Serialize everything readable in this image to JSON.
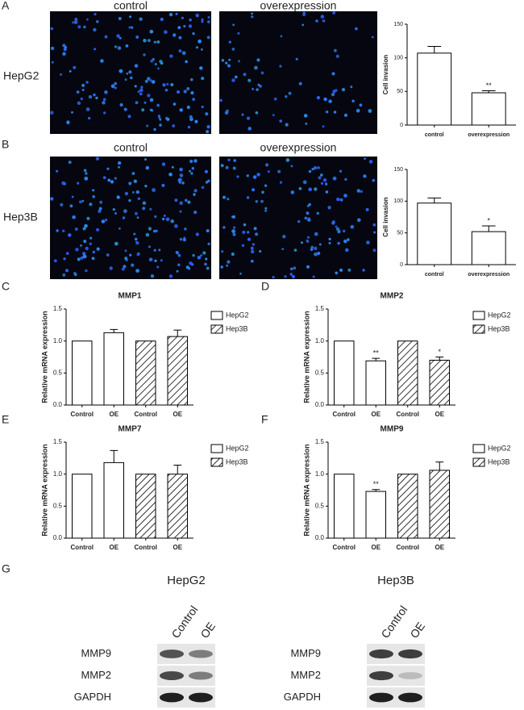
{
  "panel_labels": [
    "A",
    "B",
    "C",
    "D",
    "E",
    "F",
    "G"
  ],
  "microscopy": [
    {
      "cell_line": "HepG2",
      "columns": [
        "control",
        "overexpression"
      ]
    },
    {
      "cell_line": "Hep3B",
      "columns": [
        "control",
        "overexpression"
      ]
    }
  ],
  "chart_data": [
    {
      "type": "bar",
      "categories": [
        "control",
        "overexpression"
      ],
      "values": [
        107,
        48
      ],
      "errors": [
        10,
        3
      ],
      "significance": [
        null,
        "**"
      ],
      "color": "#ffffff",
      "y_label": "Cell invasion",
      "ylim": [
        0,
        150
      ],
      "yticks": [
        0,
        50,
        100,
        150
      ]
    },
    {
      "type": "bar",
      "categories": [
        "control",
        "overexpression"
      ],
      "values": [
        97,
        52
      ],
      "errors": [
        8,
        9
      ],
      "significance": [
        null,
        "*"
      ],
      "color": "#ffffff",
      "y_label": "Cell invasion",
      "ylim": [
        0,
        150
      ],
      "yticks": [
        0,
        50,
        100,
        150
      ]
    },
    {
      "type": "bar",
      "title": "MMP1",
      "categories": [
        "Control",
        "OE",
        "Control",
        "OE"
      ],
      "series": [
        {
          "name": "HepG2",
          "color": "#ffffff",
          "hatch": false,
          "values": [
            1.0,
            1.13,
            null,
            null
          ],
          "errors": [
            null,
            0.05,
            null,
            null
          ],
          "significance": [
            null,
            null,
            null,
            null
          ]
        },
        {
          "name": "Hep3B",
          "color": "#ffffff",
          "hatch": true,
          "values": [
            null,
            null,
            1.0,
            1.07
          ],
          "errors": [
            null,
            null,
            null,
            0.1
          ],
          "significance": [
            null,
            null,
            null,
            null
          ]
        }
      ],
      "y_label": "Relative mRNA expression",
      "legend": "outside-right",
      "ylim": [
        0,
        1.5
      ],
      "yticks": [
        {
          "value": 0,
          "label": "0.0"
        },
        {
          "value": 0.5,
          "label": "0.5"
        },
        {
          "value": 1,
          "label": "1.0"
        },
        {
          "value": 1.5,
          "label": "1.5"
        }
      ]
    },
    {
      "type": "bar",
      "title": "MMP2",
      "categories": [
        "Control",
        "OE",
        "Control",
        "OE"
      ],
      "series": [
        {
          "name": "HepG2",
          "color": "#ffffff",
          "hatch": false,
          "values": [
            1.0,
            0.69,
            null,
            null
          ],
          "errors": [
            null,
            0.04,
            null,
            null
          ],
          "significance": [
            null,
            "**",
            null,
            null
          ]
        },
        {
          "name": "Hep3B",
          "color": "#ffffff",
          "hatch": true,
          "values": [
            null,
            null,
            1.0,
            0.7
          ],
          "errors": [
            null,
            null,
            null,
            0.05
          ],
          "significance": [
            null,
            null,
            null,
            "*"
          ]
        }
      ],
      "y_label": "Relative mRNA expression",
      "legend": "outside-right",
      "ylim": [
        0,
        1.5
      ],
      "yticks": [
        {
          "value": 0,
          "label": "0.0"
        },
        {
          "value": 0.5,
          "label": "0.5"
        },
        {
          "value": 1,
          "label": "1.0"
        },
        {
          "value": 1.5,
          "label": "1.5"
        }
      ]
    },
    {
      "type": "bar",
      "title": "MMP7",
      "categories": [
        "Control",
        "OE",
        "Control",
        "OE"
      ],
      "series": [
        {
          "name": "HepG2",
          "color": "#ffffff",
          "hatch": false,
          "values": [
            1.0,
            1.18,
            null,
            null
          ],
          "errors": [
            null,
            0.19,
            null,
            null
          ],
          "significance": [
            null,
            null,
            null,
            null
          ]
        },
        {
          "name": "Hep3B",
          "color": "#ffffff",
          "hatch": true,
          "values": [
            null,
            null,
            1.0,
            1.0
          ],
          "errors": [
            null,
            null,
            null,
            0.14
          ],
          "significance": [
            null,
            null,
            null,
            null
          ]
        }
      ],
      "y_label": "Relative mRNA expression",
      "legend": "outside-right",
      "ylim": [
        0,
        1.5
      ],
      "yticks": [
        {
          "value": 0,
          "label": "0.0"
        },
        {
          "value": 0.5,
          "label": "0.5"
        },
        {
          "value": 1,
          "label": "1.0"
        },
        {
          "value": 1.5,
          "label": "1.5"
        }
      ]
    },
    {
      "type": "bar",
      "title": "MMP9",
      "categories": [
        "Control",
        "OE",
        "Control",
        "OE"
      ],
      "series": [
        {
          "name": "HepG2",
          "color": "#ffffff",
          "hatch": false,
          "values": [
            1.0,
            0.73,
            null,
            null
          ],
          "errors": [
            null,
            0.03,
            null,
            null
          ],
          "significance": [
            null,
            "**",
            null,
            null
          ]
        },
        {
          "name": "Hep3B",
          "color": "#ffffff",
          "hatch": true,
          "values": [
            null,
            null,
            1.0,
            1.06
          ],
          "errors": [
            null,
            null,
            null,
            0.13
          ],
          "significance": [
            null,
            null,
            null,
            null
          ]
        }
      ],
      "y_label": "Relative mRNA expression",
      "legend": "outside-right",
      "ylim": [
        0,
        1.5
      ],
      "yticks": [
        {
          "value": 0,
          "label": "0.0"
        },
        {
          "value": 0.5,
          "label": "0.5"
        },
        {
          "value": 1,
          "label": "1.0"
        },
        {
          "value": 1.5,
          "label": "1.5"
        }
      ]
    }
  ],
  "western": [
    {
      "cell_line": "HepG2",
      "lanes": [
        "Control",
        "OE"
      ],
      "rows": [
        "MMP9",
        "MMP2",
        "GAPDH"
      ]
    },
    {
      "cell_line": "Hep3B",
      "lanes": [
        "Control",
        "OE"
      ],
      "rows": [
        "MMP9",
        "MMP2",
        "GAPDH"
      ]
    }
  ]
}
